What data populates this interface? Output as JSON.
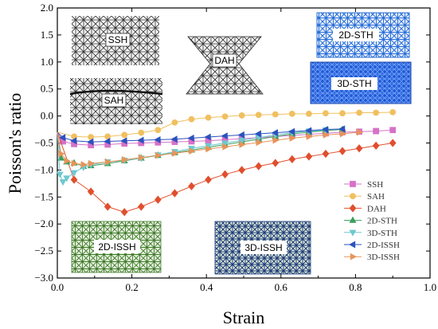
{
  "chart_data": {
    "type": "line",
    "title": "",
    "xlabel": "Strain",
    "ylabel": "Poisson's ratio",
    "xlim": [
      0.0,
      1.0
    ],
    "ylim": [
      -3.0,
      2.0
    ],
    "xticks": [
      "0.0",
      "0.2",
      "0.4",
      "0.6",
      "0.8",
      "1.0"
    ],
    "yticks": [
      "2.0",
      "1.5",
      "1.0",
      "0.5",
      "0.0",
      "−0.5",
      "−1.0",
      "−1.5",
      "−2.0",
      "−2.5",
      "−3.0"
    ],
    "grid": false,
    "legend_position": "bottom-right",
    "series": [
      {
        "name": "SSH",
        "color": "#d672c8",
        "marker": "square",
        "x": [
          0.0,
          0.015,
          0.045,
          0.09,
          0.135,
          0.18,
          0.225,
          0.27,
          0.315,
          0.36,
          0.405,
          0.45,
          0.495,
          0.54,
          0.585,
          0.63,
          0.675,
          0.72,
          0.765,
          0.81,
          0.855,
          0.9
        ],
        "y": [
          -0.3,
          -0.47,
          -0.52,
          -0.54,
          -0.53,
          -0.51,
          -0.5,
          -0.49,
          -0.48,
          -0.47,
          -0.46,
          -0.44,
          -0.42,
          -0.4,
          -0.38,
          -0.36,
          -0.34,
          -0.32,
          -0.3,
          -0.29,
          -0.28,
          -0.26
        ]
      },
      {
        "name": "SAH",
        "color": "#f0c060",
        "marker": "circle",
        "x": [
          0.0,
          0.045,
          0.09,
          0.135,
          0.18,
          0.225,
          0.27,
          0.315,
          0.36,
          0.405,
          0.45,
          0.495,
          0.54,
          0.585,
          0.63,
          0.675,
          0.72,
          0.765,
          0.81,
          0.855,
          0.9
        ],
        "y": [
          -0.3,
          -0.38,
          -0.39,
          -0.38,
          -0.35,
          -0.31,
          -0.26,
          -0.12,
          -0.06,
          -0.03,
          -0.01,
          0.01,
          0.02,
          0.03,
          0.04,
          0.04,
          0.05,
          0.05,
          0.06,
          0.06,
          0.07
        ]
      },
      {
        "name": "DAH",
        "color": "#e04f2e",
        "marker": "diamond",
        "x": [
          0.0,
          0.045,
          0.09,
          0.135,
          0.18,
          0.225,
          0.27,
          0.315,
          0.36,
          0.405,
          0.45,
          0.495,
          0.54,
          0.585,
          0.63,
          0.675,
          0.72,
          0.765,
          0.81,
          0.855,
          0.9
        ],
        "y": [
          -0.3,
          -1.18,
          -1.4,
          -1.68,
          -1.78,
          -1.68,
          -1.55,
          -1.43,
          -1.3,
          -1.18,
          -1.08,
          -1.0,
          -0.93,
          -0.87,
          -0.8,
          -0.75,
          -0.7,
          -0.65,
          -0.6,
          -0.55,
          -0.5
        ]
      },
      {
        "name": "2D-STH",
        "color": "#3a9e5c",
        "marker": "triangle-up",
        "x": [
          0.0,
          0.01,
          0.025,
          0.045,
          0.07,
          0.09,
          0.135,
          0.18,
          0.225,
          0.27,
          0.315,
          0.36,
          0.405,
          0.45,
          0.495,
          0.54,
          0.585,
          0.63,
          0.675,
          0.72,
          0.765
        ],
        "y": [
          -0.3,
          -0.78,
          -0.85,
          -0.87,
          -0.93,
          -0.92,
          -0.88,
          -0.83,
          -0.78,
          -0.73,
          -0.68,
          -0.63,
          -0.58,
          -0.53,
          -0.48,
          -0.43,
          -0.38,
          -0.33,
          -0.3,
          -0.27,
          -0.25
        ]
      },
      {
        "name": "3D-STH",
        "color": "#6fc8d0",
        "marker": "triangle-down",
        "x": [
          0.0,
          0.007,
          0.015,
          0.025,
          0.045,
          0.07,
          0.09,
          0.135,
          0.18,
          0.225,
          0.27,
          0.315,
          0.36,
          0.405,
          0.45,
          0.495,
          0.54,
          0.585,
          0.63,
          0.675,
          0.72
        ],
        "y": [
          -0.3,
          -1.08,
          -1.22,
          -1.15,
          -1.05,
          -0.95,
          -0.9,
          -0.85,
          -0.82,
          -0.78,
          -0.72,
          -0.66,
          -0.6,
          -0.55,
          -0.5,
          -0.45,
          -0.4,
          -0.35,
          -0.31,
          -0.28,
          -0.26
        ]
      },
      {
        "name": "2D-ISSH",
        "color": "#2a52be",
        "marker": "triangle-left",
        "x": [
          0.0,
          0.015,
          0.045,
          0.09,
          0.135,
          0.18,
          0.225,
          0.27,
          0.315,
          0.36,
          0.405,
          0.45,
          0.495,
          0.54,
          0.585,
          0.63,
          0.675,
          0.72,
          0.765
        ],
        "y": [
          -0.3,
          -0.4,
          -0.46,
          -0.48,
          -0.47,
          -0.46,
          -0.45,
          -0.44,
          -0.43,
          -0.41,
          -0.39,
          -0.37,
          -0.35,
          -0.33,
          -0.31,
          -0.29,
          -0.27,
          -0.25,
          -0.24
        ]
      },
      {
        "name": "3D-ISSH",
        "color": "#e8945a",
        "marker": "triangle-right",
        "x": [
          0.0,
          0.01,
          0.025,
          0.045,
          0.07,
          0.09,
          0.135,
          0.18,
          0.225,
          0.27,
          0.315,
          0.36,
          0.405,
          0.45,
          0.495,
          0.54,
          0.585,
          0.63,
          0.675,
          0.72,
          0.765,
          0.81
        ],
        "y": [
          -0.3,
          -0.7,
          -0.83,
          -0.88,
          -0.9,
          -0.88,
          -0.85,
          -0.81,
          -0.77,
          -0.73,
          -0.69,
          -0.65,
          -0.61,
          -0.57,
          -0.53,
          -0.49,
          -0.45,
          -0.41,
          -0.38,
          -0.35,
          -0.33,
          -0.3
        ]
      }
    ],
    "insets": [
      {
        "label": "SSH",
        "style": "dark-lattice"
      },
      {
        "label": "SAH",
        "style": "dark-lattice"
      },
      {
        "label": "DAH",
        "style": "dark-hourglass"
      },
      {
        "label": "2D-STH",
        "style": "blue-lattice"
      },
      {
        "label": "3D-STH",
        "style": "blue-dense"
      },
      {
        "label": "2D-ISSH",
        "style": "green-lattice"
      },
      {
        "label": "3D-ISSH",
        "style": "navy-lattice"
      }
    ]
  }
}
